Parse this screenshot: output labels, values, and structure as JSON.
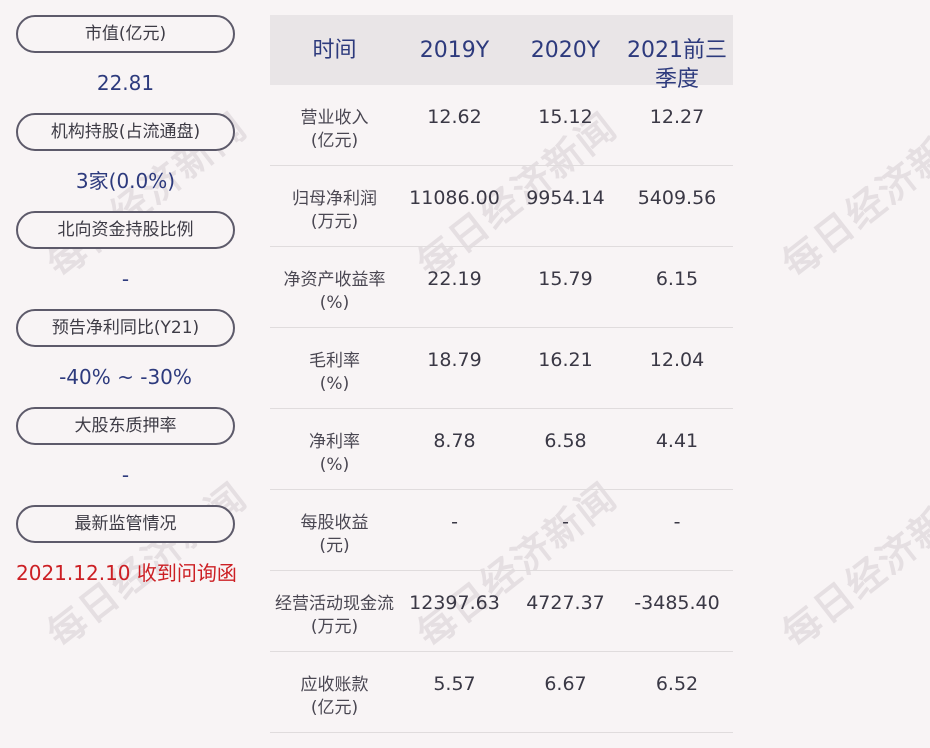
{
  "left_panel": [
    {
      "label": "市值(亿元)",
      "value": "22.81",
      "red": false
    },
    {
      "label": "机构持股(占流通盘)",
      "value": "3家(0.0%)",
      "red": false
    },
    {
      "label": "北向资金持股比例",
      "value": "-",
      "red": false
    },
    {
      "label": "预告净利同比(Y21)",
      "value": "-40% ~ -30%",
      "red": false
    },
    {
      "label": "大股东质押率",
      "value": "-",
      "red": false
    },
    {
      "label": "最新监管情况",
      "value": "2021.12.10 收到问询函",
      "red": true
    }
  ],
  "table": {
    "headers": [
      "时间",
      "2019Y",
      "2020Y",
      "2021前三季度"
    ],
    "rows": [
      {
        "name": "营业收入",
        "unit": "(亿元)",
        "values": [
          "12.62",
          "15.12",
          "12.27"
        ]
      },
      {
        "name": "归母净利润",
        "unit": "(万元)",
        "values": [
          "11086.00",
          "9954.14",
          "5409.56"
        ]
      },
      {
        "name": "净资产收益率",
        "unit": "(%)",
        "values": [
          "22.19",
          "15.79",
          "6.15"
        ]
      },
      {
        "name": "毛利率",
        "unit": "(%)",
        "values": [
          "18.79",
          "16.21",
          "12.04"
        ]
      },
      {
        "name": "净利率",
        "unit": "(%)",
        "values": [
          "8.78",
          "6.58",
          "4.41"
        ]
      },
      {
        "name": "每股收益",
        "unit": "(元)",
        "values": [
          "-",
          "-",
          "-"
        ]
      },
      {
        "name": "经营活动现金流",
        "unit": "(万元)",
        "values": [
          "12397.63",
          "4727.37",
          "-3485.40"
        ]
      },
      {
        "name": "应收账款",
        "unit": "(亿元)",
        "values": [
          "5.57",
          "6.67",
          "6.52"
        ]
      }
    ]
  },
  "watermark": "每日经济新闻",
  "colors": {
    "accent": "#2d3a7d",
    "alert": "#cc1f24",
    "header_bg": "#e9e5e7",
    "background": "#f8f4f5"
  }
}
